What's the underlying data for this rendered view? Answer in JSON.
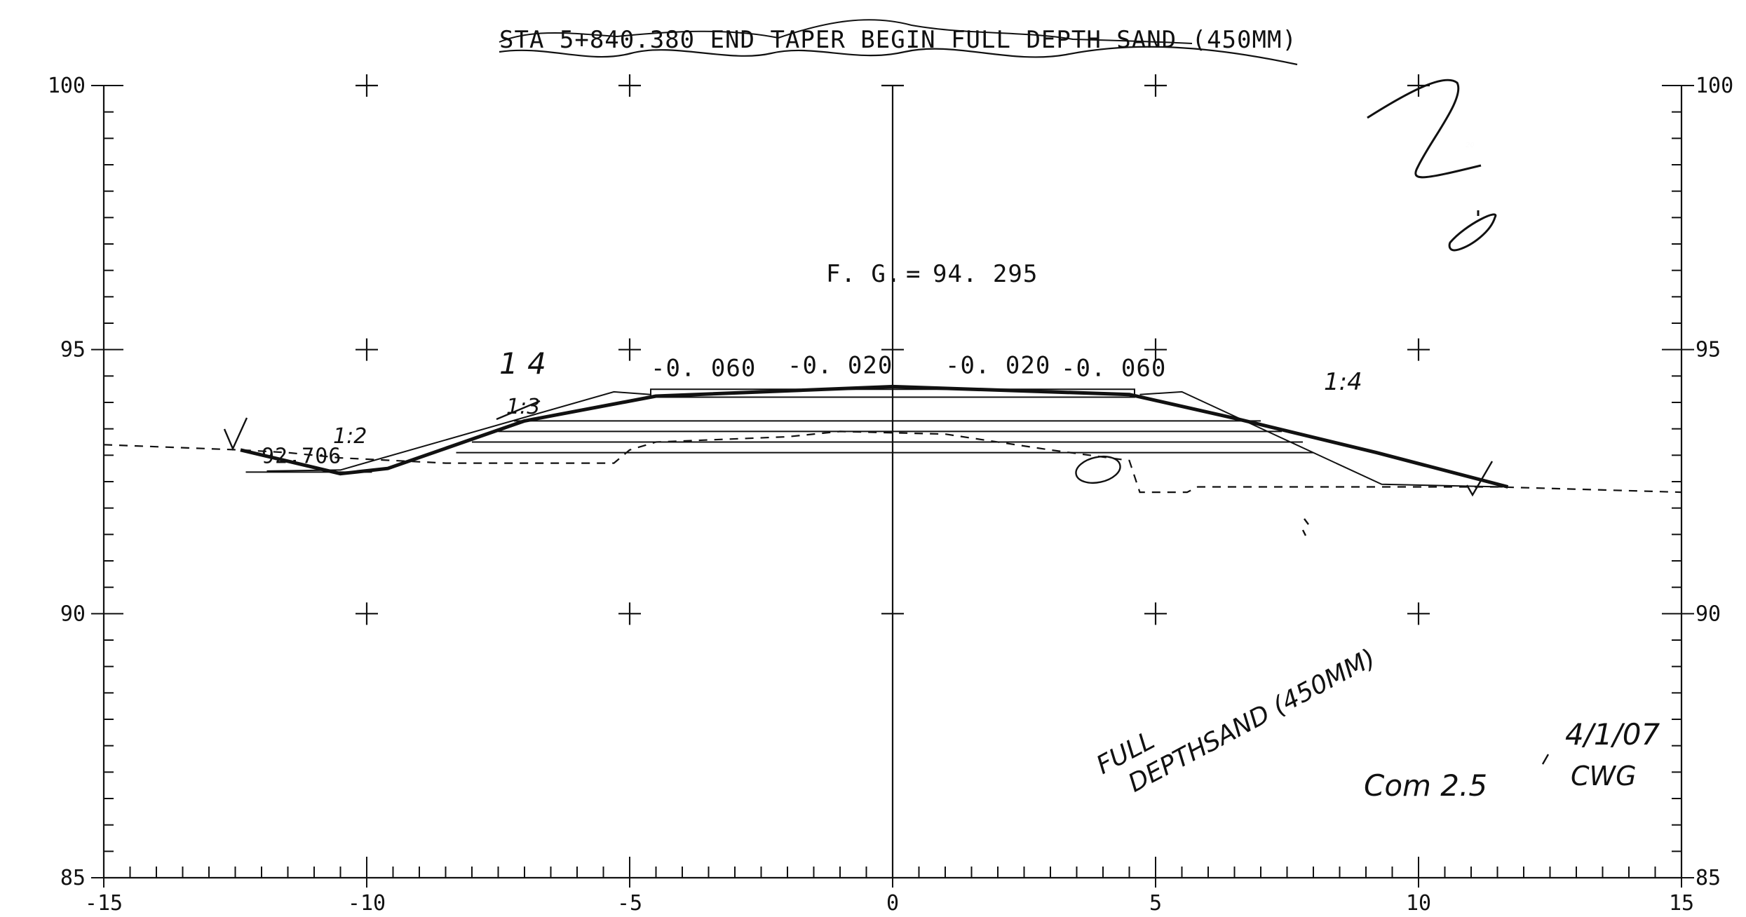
{
  "title": "STA 5+840.380 END TAPER BEGIN FULL DEPTH SAND (450MM)",
  "finished_grade": {
    "label": "F. G.",
    "eq": "=",
    "value": "94. 295"
  },
  "axes": {
    "x": {
      "min": -15,
      "max": 15,
      "tick_labels": [
        {
          "v": -15,
          "t": "-15"
        },
        {
          "v": -10,
          "t": "-10"
        },
        {
          "v": -5,
          "t": "-5"
        },
        {
          "v": 0,
          "t": "0"
        },
        {
          "v": 5,
          "t": "5"
        },
        {
          "v": 10,
          "t": "10"
        },
        {
          "v": 15,
          "t": "15"
        }
      ]
    },
    "y": {
      "min": 85,
      "max": 100,
      "left_labels": [
        {
          "v": 100,
          "t": "100"
        },
        {
          "v": 95,
          "t": "95"
        },
        {
          "v": 90,
          "t": "90"
        },
        {
          "v": 85,
          "t": "85"
        }
      ],
      "right_labels": [
        {
          "v": 100,
          "t": "100"
        },
        {
          "v": 95,
          "t": "95"
        },
        {
          "v": 90,
          "t": "90"
        },
        {
          "v": 85,
          "t": "85"
        }
      ]
    }
  },
  "grid_crosses": [
    [
      -10,
      100
    ],
    [
      -5,
      100
    ],
    [
      5,
      100
    ],
    [
      10,
      100
    ],
    [
      -10,
      95
    ],
    [
      -5,
      95
    ],
    [
      5,
      95
    ],
    [
      10,
      95
    ],
    [
      -10,
      90
    ],
    [
      -5,
      90
    ],
    [
      5,
      90
    ],
    [
      10,
      90
    ]
  ],
  "slope_labels": [
    {
      "t": "-0. 060",
      "x": -4.6,
      "y": 94.5
    },
    {
      "t": "-0. 020",
      "x": -2.0,
      "y": 94.55
    },
    {
      "t": "-0. 020",
      "x": 1.0,
      "y": 94.55
    },
    {
      "t": "-0. 060",
      "x": 3.2,
      "y": 94.5
    }
  ],
  "elevation_label": {
    "t": "92.706",
    "x": -12.0,
    "y": 92.85
  },
  "handwritten": {
    "slope_left": "1 4",
    "slope_left_strike": "1:3",
    "slope_ditch": "1:2",
    "slope_right": "1:4",
    "sheet_number": "20",
    "note_line1": "FULL",
    "note_line2": "DEPTH",
    "note_line3": "SAND (450MM)",
    "comment": "Com 2.5",
    "date": "4/1/07",
    "initials": "CWG"
  },
  "profiles": {
    "existing_ground": [
      [
        -15,
        93.2
      ],
      [
        -12.4,
        93.1
      ],
      [
        -11.5,
        93.05
      ],
      [
        -10.5,
        92.95
      ],
      [
        -8.5,
        92.85
      ],
      [
        -5.3,
        92.85
      ],
      [
        -5.0,
        93.1
      ],
      [
        -4.5,
        93.25
      ],
      [
        -2.0,
        93.35
      ],
      [
        -1.0,
        93.45
      ],
      [
        1.0,
        93.4
      ],
      [
        3.0,
        93.1
      ],
      [
        4.5,
        92.9
      ],
      [
        4.7,
        92.3
      ],
      [
        5.6,
        92.3
      ],
      [
        5.8,
        92.4
      ],
      [
        9.0,
        92.4
      ],
      [
        11.5,
        92.4
      ],
      [
        15,
        92.3
      ]
    ],
    "finished_surface": [
      [
        -12.4,
        93.1
      ],
      [
        -10.5,
        92.65
      ],
      [
        -9.6,
        92.75
      ],
      [
        -7.0,
        93.65
      ],
      [
        -4.5,
        94.12
      ],
      [
        0,
        94.3
      ],
      [
        4.5,
        94.15
      ],
      [
        6.5,
        93.7
      ],
      [
        9.2,
        93.05
      ],
      [
        11.7,
        92.4
      ]
    ],
    "subgrade_lines": [
      [
        [
          -7.2,
          93.65
        ],
        [
          7.0,
          93.65
        ]
      ],
      [
        [
          -7.5,
          93.45
        ],
        [
          7.4,
          93.45
        ]
      ],
      [
        [
          -8.0,
          93.25
        ],
        [
          7.8,
          93.25
        ]
      ],
      [
        [
          -8.3,
          93.05
        ],
        [
          8.0,
          93.05
        ]
      ]
    ],
    "sand_taper_left": [
      [
        -11.9,
        92.7
      ],
      [
        -10.5,
        92.72
      ],
      [
        -5.3,
        94.2
      ],
      [
        -4.6,
        94.15
      ]
    ],
    "sand_taper_right": [
      [
        4.7,
        94.15
      ],
      [
        5.5,
        94.2
      ],
      [
        9.3,
        92.45
      ],
      [
        11.6,
        92.4
      ]
    ],
    "pavement_box": [
      [
        -4.6,
        94.1
      ],
      [
        4.6,
        94.1
      ],
      [
        4.6,
        94.25
      ],
      [
        -4.6,
        94.25
      ]
    ],
    "ditch_bottom": [
      [
        -12.3,
        92.68
      ],
      [
        -9.9,
        92.68
      ]
    ]
  }
}
